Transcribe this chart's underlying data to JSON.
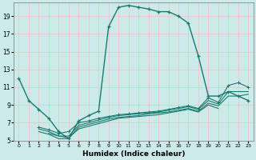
{
  "bg_color": "#cdeaea",
  "grid_color": "#b0d8d8",
  "line_color": "#1a7a6e",
  "xlabel": "Humidex (Indice chaleur)",
  "xlim": [
    -0.5,
    23.5
  ],
  "ylim": [
    5,
    20.5
  ],
  "yticks": [
    5,
    7,
    9,
    11,
    13,
    15,
    17,
    19
  ],
  "xticks": [
    0,
    1,
    2,
    3,
    4,
    5,
    6,
    7,
    8,
    9,
    10,
    11,
    12,
    13,
    14,
    15,
    16,
    17,
    18,
    19,
    20,
    21,
    22,
    23
  ],
  "line1_x": [
    0,
    1,
    2,
    3,
    4,
    5,
    6,
    7,
    8,
    9,
    10,
    11,
    12,
    13,
    14,
    15,
    16,
    17,
    18,
    19,
    20,
    21,
    22,
    23
  ],
  "line1_y": [
    12.0,
    9.5,
    8.5,
    7.5,
    6.0,
    5.2,
    7.2,
    7.8,
    8.3,
    17.8,
    20.0,
    20.2,
    20.0,
    19.8,
    19.5,
    19.5,
    19.0,
    18.2,
    14.5,
    10.0,
    10.0,
    10.5,
    10.0,
    9.5
  ],
  "line2_x": [
    2,
    3,
    4,
    5,
    6,
    7,
    8,
    9,
    10,
    11,
    12,
    13,
    14,
    15,
    16,
    17,
    18,
    19,
    20,
    21,
    22,
    23
  ],
  "line2_y": [
    6.5,
    6.2,
    5.8,
    6.0,
    7.0,
    7.2,
    7.5,
    7.7,
    7.9,
    8.0,
    8.1,
    8.2,
    8.3,
    8.5,
    8.7,
    8.9,
    8.6,
    9.8,
    9.3,
    11.2,
    11.5,
    11.0
  ],
  "line3_x": [
    2,
    3,
    4,
    5,
    6,
    7,
    8,
    9,
    10,
    11,
    12,
    13,
    14,
    15,
    16,
    17,
    18,
    19,
    20,
    21,
    22,
    23
  ],
  "line3_y": [
    6.3,
    6.0,
    5.5,
    5.5,
    6.7,
    7.0,
    7.3,
    7.6,
    7.8,
    7.9,
    8.0,
    8.1,
    8.2,
    8.4,
    8.6,
    8.8,
    8.5,
    9.5,
    9.1,
    10.5,
    10.5,
    10.5
  ],
  "line4_x": [
    2,
    3,
    4,
    5,
    6,
    7,
    8,
    9,
    10,
    11,
    12,
    13,
    14,
    15,
    16,
    17,
    18,
    19,
    20,
    21,
    22,
    23
  ],
  "line4_y": [
    6.0,
    5.7,
    5.2,
    5.2,
    6.5,
    6.8,
    7.1,
    7.4,
    7.6,
    7.7,
    7.8,
    8.0,
    8.1,
    8.2,
    8.4,
    8.6,
    8.3,
    9.2,
    8.9,
    10.0,
    10.0,
    10.2
  ],
  "line5_x": [
    3,
    4,
    5,
    6,
    7,
    8,
    9,
    10,
    11,
    12,
    13,
    14,
    15,
    16,
    17,
    18,
    19,
    20
  ],
  "line5_y": [
    5.8,
    5.5,
    5.3,
    6.3,
    6.6,
    6.9,
    7.2,
    7.5,
    7.6,
    7.7,
    7.8,
    7.9,
    8.1,
    8.3,
    8.5,
    8.2,
    9.0,
    8.6
  ],
  "marker": "+"
}
